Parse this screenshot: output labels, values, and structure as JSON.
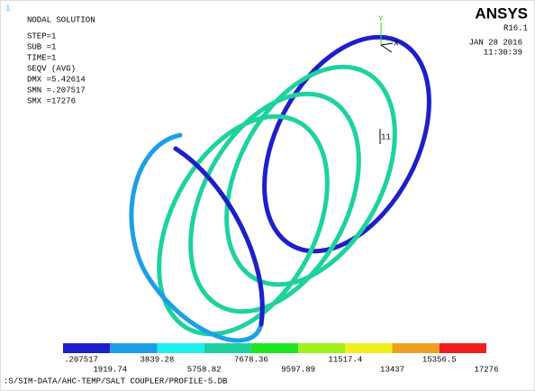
{
  "window_index": "1",
  "title": "NODAL SOLUTION",
  "info": [
    "STEP=1",
    "SUB =1",
    "TIME=1",
    "SEQV    (AVG)",
    "DMX =5.42614",
    "SMN =.207517",
    "SMX =17276"
  ],
  "logo": {
    "name": "ANSYS",
    "version": "R16.1",
    "date": "JAN 28 2016",
    "time": "11:30:39"
  },
  "triad": {
    "y": "Y",
    "x": "X"
  },
  "annotation": "11",
  "legend": {
    "colors": [
      "#1f1fc8",
      "#1e9ee8",
      "#1ef0f0",
      "#1ed2a0",
      "#1ee61e",
      "#a0f01e",
      "#f0f01e",
      "#f0a01e",
      "#f01e1e"
    ],
    "labels": [
      ".207517",
      "1919.74",
      "3839.28",
      "5758.82",
      "7678.36",
      "9597.89",
      "11517.4",
      "13437",
      "15356.5",
      "17276"
    ]
  },
  "footer": ":S/SIM-DATA/AHC-TEMP/SALT COUPLER/PROFILE-5.DB"
}
